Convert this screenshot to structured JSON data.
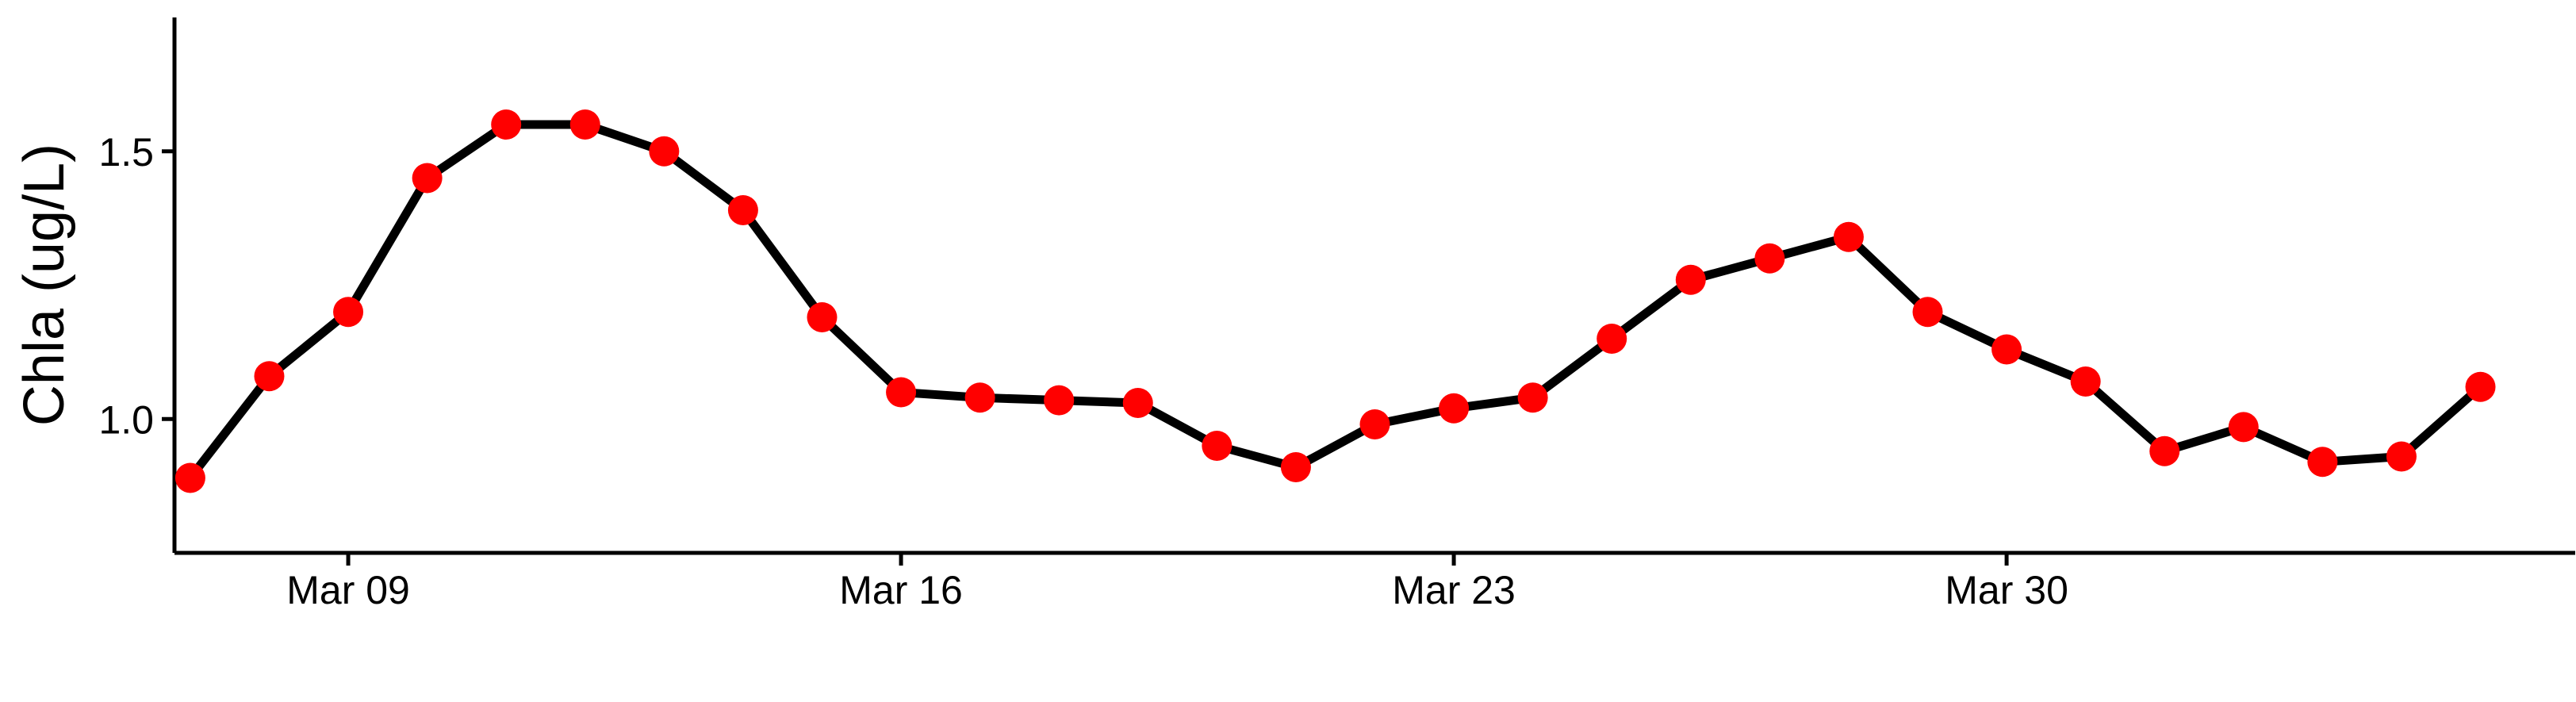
{
  "chart_data": {
    "type": "line",
    "title": "",
    "xlabel": "",
    "ylabel": "Chla (ug/L)",
    "x_start_day": 7,
    "x_end_day": 37,
    "xlim": [
      6.8,
      37.2
    ],
    "ylim": [
      0.75,
      1.75
    ],
    "x_ticks": [
      {
        "day": 9,
        "label": "Mar 09"
      },
      {
        "day": 16,
        "label": "Mar 16"
      },
      {
        "day": 23,
        "label": "Mar 23"
      },
      {
        "day": 30,
        "label": "Mar 30"
      }
    ],
    "y_ticks": [
      {
        "value": 1.0,
        "label": "1.0"
      },
      {
        "value": 1.5,
        "label": "1.5"
      }
    ],
    "series": [
      {
        "name": "Chla",
        "line_color": "#000000",
        "point_color": "#ff0000",
        "values": [
          0.89,
          1.08,
          1.2,
          1.45,
          1.55,
          1.55,
          1.5,
          1.39,
          1.19,
          1.05,
          1.04,
          1.035,
          1.03,
          0.95,
          0.91,
          0.99,
          1.02,
          1.04,
          1.15,
          1.26,
          1.3,
          1.34,
          1.2,
          1.13,
          1.07,
          0.94,
          0.985,
          0.92,
          0.93,
          1.06
        ]
      }
    ],
    "grid": false,
    "legend": "none"
  }
}
